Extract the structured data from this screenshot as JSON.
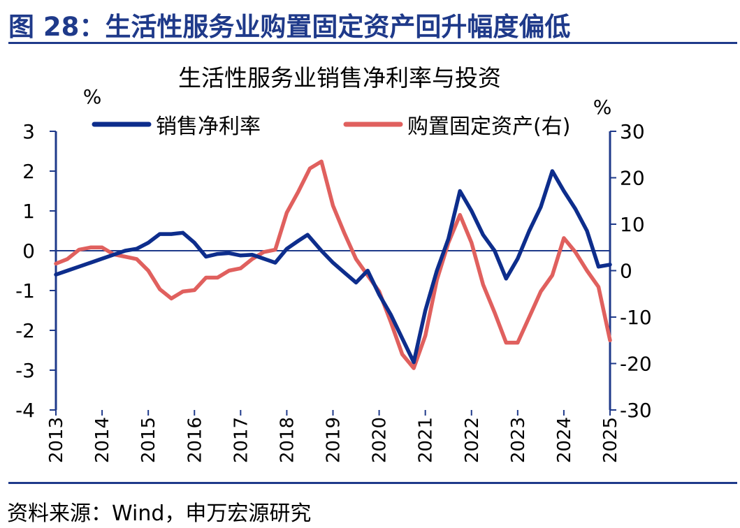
{
  "figure_title": "图 28：生活性服务业购置固定资产回升幅度偏低",
  "source_text": "资料来源：Wind，申万宏源研究",
  "colors": {
    "accent": "#1f3a8a",
    "series_margin": "#0d2d8c",
    "series_capex": "#e0605e"
  },
  "chart_data": {
    "type": "line",
    "title": "生活性服务业销售净利率与投资",
    "y_left_label": "%",
    "y_right_label": "%",
    "ylim_left": [
      -4,
      3
    ],
    "ylim_right": [
      -30,
      30
    ],
    "y_left_ticks": [
      "3",
      "2",
      "1",
      "0",
      "-1",
      "-2",
      "-3",
      "-4"
    ],
    "y_right_ticks": [
      "30",
      "20",
      "10",
      "0",
      "-10",
      "-20",
      "-30"
    ],
    "x_ticks": [
      "2013",
      "2014",
      "2015",
      "2016",
      "2017",
      "2018",
      "2019",
      "2020",
      "2021",
      "2022",
      "2023",
      "2024",
      "2025"
    ],
    "x_range": [
      2013.0,
      2025.0
    ],
    "legend_position": "top",
    "series": [
      {
        "name": "销售净利率",
        "axis": "left",
        "color": "#0d2d8c",
        "points": [
          [
            2013.0,
            -0.6
          ],
          [
            2013.25,
            -0.5
          ],
          [
            2013.5,
            -0.4
          ],
          [
            2013.75,
            -0.3
          ],
          [
            2014.0,
            -0.2
          ],
          [
            2014.25,
            -0.1
          ],
          [
            2014.5,
            0.0
          ],
          [
            2014.75,
            0.05
          ],
          [
            2015.0,
            0.2
          ],
          [
            2015.25,
            0.42
          ],
          [
            2015.5,
            0.42
          ],
          [
            2015.75,
            0.45
          ],
          [
            2016.0,
            0.2
          ],
          [
            2016.25,
            -0.15
          ],
          [
            2016.5,
            -0.08
          ],
          [
            2016.75,
            -0.06
          ],
          [
            2017.0,
            -0.12
          ],
          [
            2017.25,
            -0.1
          ],
          [
            2017.5,
            -0.2
          ],
          [
            2017.75,
            -0.3
          ],
          [
            2018.0,
            0.05
          ],
          [
            2018.25,
            0.25
          ],
          [
            2018.45,
            0.4
          ],
          [
            2018.75,
            0.0
          ],
          [
            2019.0,
            -0.3
          ],
          [
            2019.25,
            -0.55
          ],
          [
            2019.5,
            -0.8
          ],
          [
            2019.75,
            -0.5
          ],
          [
            2020.0,
            -1.1
          ],
          [
            2020.25,
            -1.6
          ],
          [
            2020.5,
            -2.2
          ],
          [
            2020.75,
            -2.8
          ],
          [
            2021.0,
            -1.5
          ],
          [
            2021.25,
            -0.5
          ],
          [
            2021.5,
            0.3
          ],
          [
            2021.75,
            1.5
          ],
          [
            2022.0,
            1.0
          ],
          [
            2022.25,
            0.4
          ],
          [
            2022.5,
            0.0
          ],
          [
            2022.75,
            -0.7
          ],
          [
            2023.0,
            -0.2
          ],
          [
            2023.25,
            0.5
          ],
          [
            2023.5,
            1.1
          ],
          [
            2023.75,
            2.0
          ],
          [
            2024.0,
            1.5
          ],
          [
            2024.25,
            1.05
          ],
          [
            2024.5,
            0.5
          ],
          [
            2024.75,
            -0.4
          ],
          [
            2025.0,
            -0.35
          ]
        ]
      },
      {
        "name": "购置固定资产(右)",
        "axis": "right",
        "color": "#e0605e",
        "points": [
          [
            2013.0,
            1.5
          ],
          [
            2013.25,
            2.5
          ],
          [
            2013.5,
            4.5
          ],
          [
            2013.75,
            5.0
          ],
          [
            2014.0,
            5.0
          ],
          [
            2014.25,
            3.5
          ],
          [
            2014.5,
            3.0
          ],
          [
            2014.75,
            2.5
          ],
          [
            2015.0,
            0.0
          ],
          [
            2015.25,
            -4.0
          ],
          [
            2015.5,
            -6.0
          ],
          [
            2015.75,
            -4.5
          ],
          [
            2016.0,
            -4.2
          ],
          [
            2016.25,
            -1.5
          ],
          [
            2016.5,
            -1.5
          ],
          [
            2016.75,
            0.0
          ],
          [
            2017.0,
            0.5
          ],
          [
            2017.25,
            2.5
          ],
          [
            2017.5,
            4.0
          ],
          [
            2017.75,
            4.5
          ],
          [
            2018.0,
            12.5
          ],
          [
            2018.25,
            17.0
          ],
          [
            2018.5,
            22.0
          ],
          [
            2018.75,
            23.5
          ],
          [
            2019.0,
            14.0
          ],
          [
            2019.25,
            8.0
          ],
          [
            2019.5,
            2.5
          ],
          [
            2019.75,
            -1.0
          ],
          [
            2020.0,
            -4.5
          ],
          [
            2020.25,
            -11.0
          ],
          [
            2020.5,
            -18.0
          ],
          [
            2020.75,
            -21.0
          ],
          [
            2021.0,
            -14.0
          ],
          [
            2021.25,
            -2.0
          ],
          [
            2021.5,
            6.0
          ],
          [
            2021.75,
            12.0
          ],
          [
            2022.0,
            6.0
          ],
          [
            2022.25,
            -3.0
          ],
          [
            2022.5,
            -9.0
          ],
          [
            2022.75,
            -15.5
          ],
          [
            2023.0,
            -15.5
          ],
          [
            2023.25,
            -10.0
          ],
          [
            2023.5,
            -4.5
          ],
          [
            2023.75,
            -1.0
          ],
          [
            2024.0,
            7.0
          ],
          [
            2024.25,
            4.0
          ],
          [
            2024.5,
            0.0
          ],
          [
            2024.75,
            -3.5
          ],
          [
            2025.0,
            -15.0
          ]
        ]
      }
    ]
  }
}
